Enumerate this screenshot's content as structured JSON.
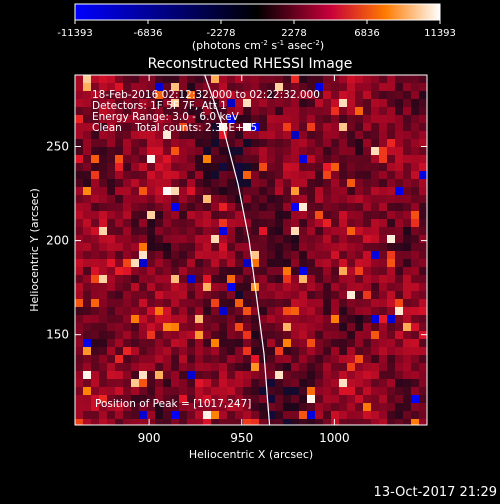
{
  "colorbar": {
    "tick_labels": [
      "-11393",
      "-6836",
      "-2278",
      "2278",
      "6836",
      "11393"
    ],
    "tick_values": [
      -11393,
      -6836,
      -2278,
      2278,
      6836,
      11393
    ],
    "range": [
      -11393,
      11393
    ],
    "units_prefix": "(photons cm",
    "units_exp1": "-2",
    "units_mid": " s",
    "units_exp2": "-1",
    "units_mid2": " asec",
    "units_exp3": "-2",
    "units_suffix": ")",
    "colors": [
      "#0000ff",
      "#000000",
      "#d00030",
      "#ff8000",
      "#ffffff"
    ]
  },
  "chart_data": {
    "type": "heatmap",
    "title": "Reconstructed RHESSI Image",
    "xlabel": "Heliocentric X (arcsec)",
    "ylabel": "Heliocentric Y (arcsec)",
    "xlim": [
      860,
      1050
    ],
    "ylim": [
      102,
      288
    ],
    "x_ticks": [
      900,
      950,
      1000
    ],
    "y_ticks": [
      150,
      200,
      250
    ],
    "x_tick_labels": [
      "900",
      "950",
      "1000"
    ],
    "y_tick_labels": [
      "150",
      "200",
      "250"
    ],
    "limb_curve": {
      "description_free": true,
      "points": [
        [
          930,
          288
        ],
        [
          940,
          260
        ],
        [
          948,
          230
        ],
        [
          954,
          200
        ],
        [
          958,
          170
        ],
        [
          962,
          140
        ],
        [
          965,
          102
        ]
      ]
    },
    "peak_position": [
      1017,
      247
    ],
    "annotations": [
      "18-Feb-2016 02:12:32.000 to 02:22:32.000",
      "Detectors: 1F 5F 7F, Att 1",
      "Energy Range: 3.0 - 6.0 keV",
      "Clean    Total counts: 2.36E+05"
    ],
    "peak_label": "Position of Peak = [1017,247]"
  },
  "footer": {
    "timestamp": "13-Oct-2017 21:29"
  }
}
